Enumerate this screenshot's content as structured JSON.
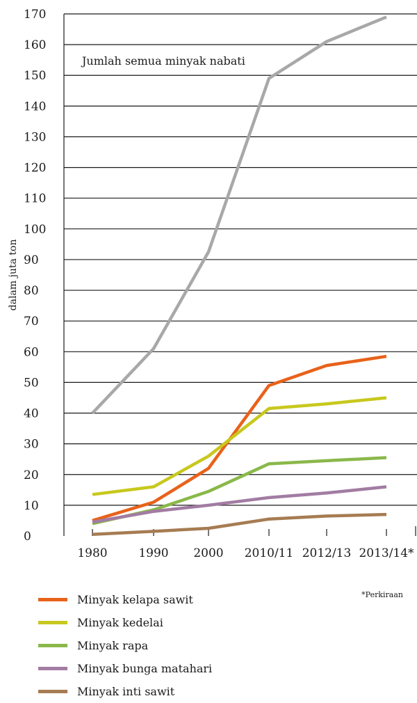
{
  "chart_data": {
    "type": "line",
    "ylabel": "dalam juta ton",
    "xlabel": "",
    "ylim": [
      0,
      170
    ],
    "yticks": [
      0,
      10,
      20,
      30,
      40,
      50,
      60,
      70,
      80,
      90,
      100,
      110,
      120,
      130,
      140,
      150,
      160,
      170
    ],
    "categories": [
      "1980",
      "1990",
      "2000",
      "2010/11",
      "2012/13",
      "2013/14*"
    ],
    "annotation": "Jumlah semua minyak nabati",
    "footnote": "*Perkiraan",
    "series": [
      {
        "name": "Jumlah semua minyak nabati",
        "in_legend": false,
        "color": "#a8a8a8",
        "values": [
          40,
          61,
          92.5,
          149,
          161,
          169
        ]
      },
      {
        "name": "Minyak kelapa sawit",
        "in_legend": true,
        "color": "#e8621a",
        "values": [
          5,
          11,
          22,
          49,
          55.5,
          58.5
        ]
      },
      {
        "name": "Minyak kedelai",
        "in_legend": true,
        "color": "#c8c81e",
        "values": [
          13.5,
          16,
          26,
          41.5,
          43,
          45
        ]
      },
      {
        "name": "Minyak rapa",
        "in_legend": true,
        "color": "#8ab84a",
        "values": [
          4,
          8.5,
          14.5,
          23.5,
          24.5,
          25.5
        ]
      },
      {
        "name": "Minyak bunga matahari",
        "in_legend": true,
        "color": "#a27ca2",
        "values": [
          4.5,
          8,
          10,
          12.5,
          14,
          16
        ]
      },
      {
        "name": "Minyak inti sawit",
        "in_legend": true,
        "color": "#a67c52",
        "values": [
          0.5,
          1.5,
          2.5,
          5.5,
          6.5,
          7
        ]
      }
    ]
  }
}
